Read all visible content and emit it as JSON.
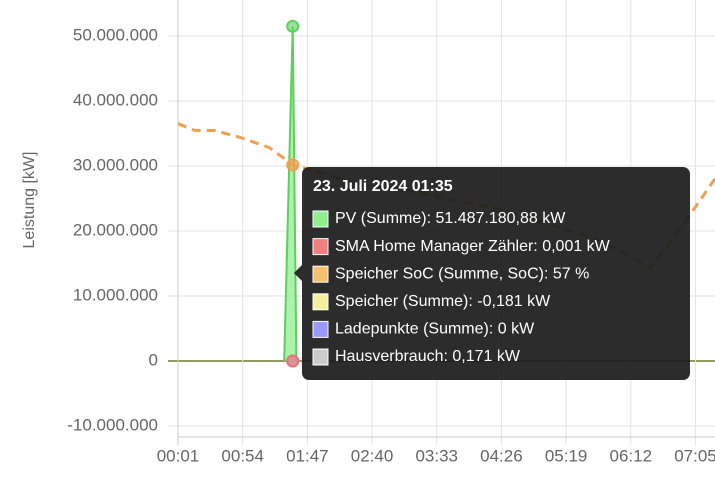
{
  "chart_data": {
    "type": "line",
    "y_label": "Leistung [kW]",
    "xlim": [
      1,
      441
    ],
    "xticks": [
      {
        "value": 1,
        "label": "00:01"
      },
      {
        "value": 54,
        "label": "00:54"
      },
      {
        "value": 107,
        "label": "01:47"
      },
      {
        "value": 160,
        "label": "02:40"
      },
      {
        "value": 213,
        "label": "03:33"
      },
      {
        "value": 266,
        "label": "04:26"
      },
      {
        "value": 319,
        "label": "05:19"
      },
      {
        "value": 372,
        "label": "06:12"
      },
      {
        "value": 425,
        "label": "07:05"
      }
    ],
    "ylim": [
      -11500000,
      55500000
    ],
    "yticks": [
      {
        "value": -10000000,
        "label": "-10.000.000"
      },
      0,
      {
        "value": 10000000,
        "label": "10.000.000"
      },
      {
        "value": 20000000,
        "label": "20.000.000"
      },
      {
        "value": 30000000,
        "label": "30.000.000"
      },
      {
        "value": 40000000,
        "label": "40.000.000"
      },
      {
        "value": 50000000,
        "label": "50.000.000"
      }
    ],
    "y2lim": [
      -22,
      105
    ],
    "grid": true,
    "hover_x": 95,
    "series": [
      {
        "color": "#5ccf5c",
        "fill": "rgba(144,238,144,0.75)",
        "x": [
          88,
          95,
          98
        ],
        "values": [
          0,
          51487180.88,
          0
        ]
      },
      {
        "color": "#f0a050",
        "axis": "y2",
        "dashed": true,
        "x": [
          1,
          15,
          31,
          52,
          76,
          95,
          125,
          150,
          183,
          265,
          347,
          388,
          412,
          441
        ],
        "values": [
          69,
          67,
          67,
          65,
          62,
          57,
          54,
          51,
          50,
          44,
          35,
          27,
          38,
          53
        ]
      },
      {
        "color": "#f2ee9a",
        "x": [
          95
        ],
        "values": [
          -0.181
        ]
      },
      {
        "color": "#9999ff",
        "x": [
          95
        ],
        "values": [
          0
        ]
      },
      {
        "color": "#cccccc",
        "x": [
          95
        ],
        "values": [
          0.171
        ]
      },
      {
        "color": "#e57373",
        "x": [
          95
        ],
        "values": [
          0.001
        ]
      }
    ],
    "tooltip": {
      "title": "23. Juli 2024 01:35",
      "items": [
        {
          "text": "PV (Summe): 51.487.180,88 kW",
          "color": "#90ee90"
        },
        {
          "text": "SMA Home Manager Zähler: 0,001 kW",
          "color": "#f08080"
        },
        {
          "text": "Speicher SoC (Summe, SoC): 57 %",
          "color": "#f5c070"
        },
        {
          "text": "Speicher (Summe): -0,181 kW",
          "color": "#f5f0a0"
        },
        {
          "text": "Ladepunkte (Summe): 0 kW",
          "color": "#9999ff"
        },
        {
          "text": "Hausverbrauch: 0,171 kW",
          "color": "#cccccc"
        }
      ]
    }
  }
}
